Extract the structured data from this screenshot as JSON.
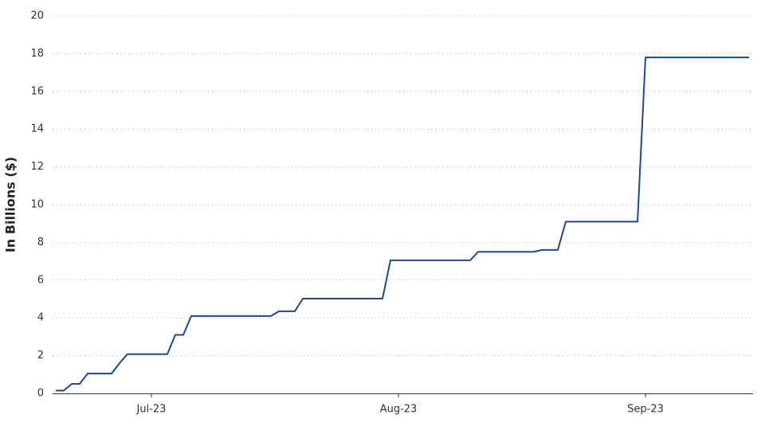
{
  "chart_data": {
    "type": "line",
    "y_label": "In Billions ($)",
    "categories": [
      null,
      null,
      null,
      null,
      null,
      null,
      null,
      null,
      null,
      null,
      null,
      null,
      "Jul-23",
      null,
      null,
      null,
      null,
      null,
      null,
      null,
      null,
      null,
      null,
      null,
      null,
      null,
      null,
      null,
      null,
      null,
      null,
      null,
      null,
      null,
      null,
      null,
      null,
      null,
      null,
      null,
      null,
      null,
      null,
      "Aug-23",
      null,
      null,
      null,
      null,
      null,
      null,
      null,
      null,
      null,
      null,
      null,
      null,
      null,
      null,
      null,
      null,
      null,
      null,
      null,
      null,
      null,
      null,
      null,
      null,
      null,
      null,
      null,
      null,
      null,
      null,
      "Sep-23",
      null,
      null,
      null,
      null,
      null,
      null,
      null,
      null,
      null,
      null,
      null,
      null,
      null
    ],
    "values": [
      0.15,
      0.15,
      0.5,
      0.5,
      1.05,
      1.05,
      1.05,
      1.05,
      1.6,
      2.08,
      2.08,
      2.08,
      2.08,
      2.08,
      2.08,
      3.1,
      3.1,
      4.1,
      4.1,
      4.1,
      4.1,
      4.1,
      4.1,
      4.1,
      4.1,
      4.1,
      4.1,
      4.1,
      4.35,
      4.35,
      4.35,
      5.02,
      5.02,
      5.02,
      5.02,
      5.02,
      5.02,
      5.02,
      5.02,
      5.02,
      5.02,
      5.02,
      7.05,
      7.05,
      7.05,
      7.05,
      7.05,
      7.05,
      7.05,
      7.05,
      7.05,
      7.05,
      7.05,
      7.5,
      7.5,
      7.5,
      7.5,
      7.5,
      7.5,
      7.5,
      7.5,
      7.6,
      7.6,
      7.6,
      9.1,
      9.1,
      9.1,
      9.1,
      9.1,
      9.1,
      9.1,
      9.1,
      9.1,
      9.1,
      17.8,
      17.8,
      17.8,
      17.8,
      17.8,
      17.8,
      17.8,
      17.8,
      17.8,
      17.8,
      17.8,
      17.8,
      17.8,
      17.8
    ],
    "color": "#1f4a87",
    "ylim": [
      0,
      20
    ],
    "yticks": [
      0,
      2,
      4,
      6,
      8,
      10,
      12,
      14,
      16,
      18,
      20
    ],
    "grid": true
  }
}
